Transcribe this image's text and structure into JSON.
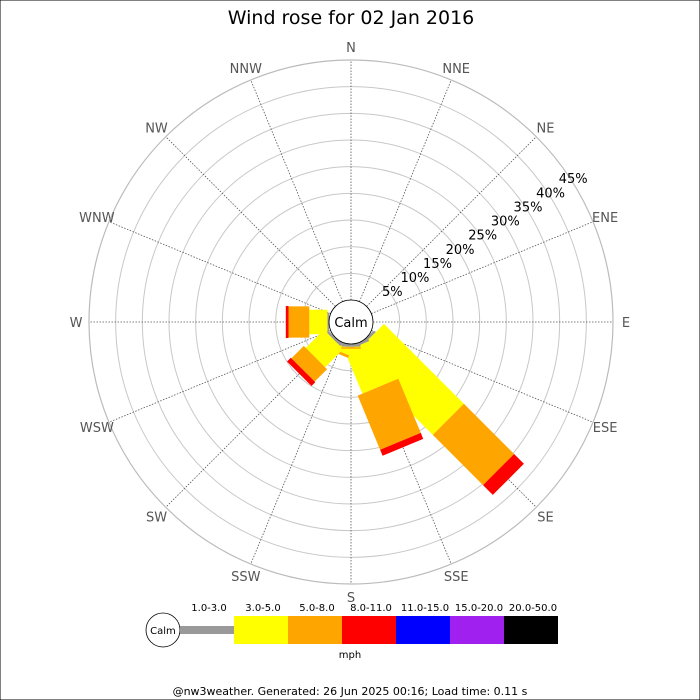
{
  "chart_data": {
    "type": "wind-rose",
    "title": "Wind rose for 02 Jan 2016",
    "center_label": "Calm",
    "unit_label": "mph",
    "directions": [
      "N",
      "NNE",
      "NE",
      "ENE",
      "E",
      "ESE",
      "SE",
      "SSE",
      "S",
      "SSW",
      "SW",
      "WSW",
      "W",
      "WNW",
      "NW",
      "NNW"
    ],
    "ring_labels": [
      "5%",
      "10%",
      "15%",
      "20%",
      "25%",
      "30%",
      "35%",
      "40%",
      "45%"
    ],
    "rmax": 45,
    "speed_bins": [
      {
        "label": "1.0-3.0",
        "color": "#999999"
      },
      {
        "label": "3.0-5.0",
        "color": "#ffff00"
      },
      {
        "label": "5.0-8.0",
        "color": "#ffa500"
      },
      {
        "label": "8.0-11.0",
        "color": "#ff0000"
      },
      {
        "label": "11.0-15.0",
        "color": "#0000ff"
      },
      {
        "label": "15.0-20.0",
        "color": "#a020f0"
      },
      {
        "label": "20.0-50.0",
        "color": "#000000"
      }
    ],
    "cumulative": {
      "SE": [
        0,
        0.5,
        21.7,
        35,
        37.6
      ],
      "SSE": [
        0,
        0.5,
        9.1,
        20.1,
        21.3
      ],
      "SSW": [
        0,
        0.5,
        1.8,
        2.3,
        2.3
      ],
      "SW": [
        0,
        0.5,
        5.3,
        8.6,
        9.6
      ],
      "W": [
        0,
        0.3,
        3.7,
        7.6,
        8.1
      ],
      "S": [
        0,
        0.5,
        0.6,
        0.9,
        0.9
      ]
    }
  },
  "footer": "@nw3weather. Generated: 26 Jun 2025 00:16; Load time: 0.11 s"
}
